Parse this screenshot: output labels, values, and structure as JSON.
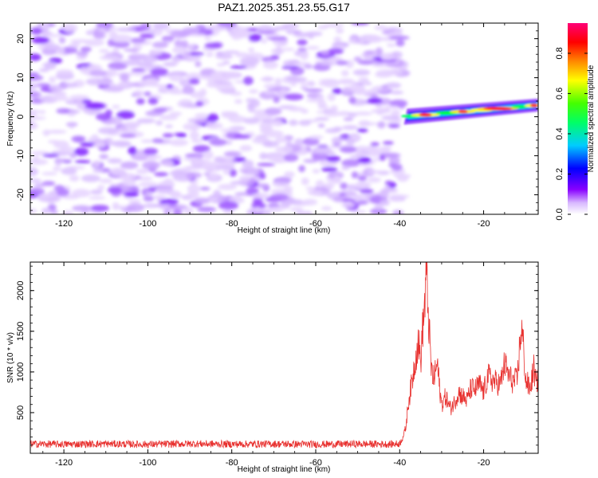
{
  "chart_data": [
    {
      "type": "heatmap",
      "title": "PAZ1.2025.351.23.55.G17",
      "xlabel": "Height of straight line (km)",
      "ylabel": "Frequency (Hz)",
      "xlim": [
        -128,
        -7
      ],
      "ylim": [
        -25,
        24
      ],
      "xticks": [
        -120,
        -100,
        -80,
        -60,
        -40,
        -20
      ],
      "yticks": [
        -20,
        -10,
        0,
        10,
        20
      ],
      "signal_band": {
        "x_start": -39,
        "x_end": -7,
        "freq_start": 0.0,
        "freq_end": 3.0
      },
      "colorbar": {
        "label": "Normalized spectral amplitude",
        "range": [
          0.0,
          0.95
        ],
        "ticks": [
          0.0,
          0.2,
          0.4,
          0.6,
          0.8
        ],
        "tick_labels": [
          "0.0",
          "0.2",
          "0.4",
          "0.6",
          "0.8"
        ],
        "colormap": [
          "#ffffff",
          "#8800ff",
          "#0000ff",
          "#00ffff",
          "#00ff00",
          "#ffff00",
          "#ff8800",
          "#ff0000",
          "#ff0088"
        ]
      }
    },
    {
      "type": "line",
      "xlabel": "Height of straight line (km)",
      "ylabel": "SNR (10 * v/v)",
      "xlim": [
        -128,
        -7
      ],
      "ylim": [
        0,
        2350
      ],
      "xticks": [
        -120,
        -100,
        -80,
        -60,
        -40,
        -20
      ],
      "yticks": [
        500,
        1000,
        1500,
        2000
      ],
      "color": "#e8312f",
      "series": [
        {
          "name": "SNR",
          "x": [
            -128,
            -120,
            -110,
            -100,
            -90,
            -80,
            -70,
            -60,
            -50,
            -42,
            -40,
            -39,
            -38.5,
            -38,
            -37,
            -36,
            -35.5,
            -35,
            -34.5,
            -34,
            -33.7,
            -33.4,
            -33,
            -32.5,
            -32,
            -31,
            -30.5,
            -30,
            -29,
            -28,
            -27,
            -26,
            -25,
            -24,
            -23,
            -22,
            -21,
            -20,
            -19,
            -18,
            -17,
            -16,
            -15,
            -14,
            -13,
            -12,
            -11.5,
            -11,
            -10.5,
            -10,
            -9.5,
            -9,
            -8,
            -7.5,
            -7
          ],
          "y": [
            115,
            112,
            116,
            110,
            118,
            112,
            115,
            110,
            115,
            112,
            118,
            230,
            330,
            600,
            900,
            1250,
            1380,
            1120,
            1550,
            1850,
            2300,
            1950,
            1550,
            1050,
            900,
            1100,
            800,
            600,
            700,
            550,
            620,
            750,
            700,
            650,
            800,
            780,
            850,
            750,
            950,
            900,
            870,
            850,
            1100,
            950,
            880,
            900,
            1250,
            1550,
            1300,
            900,
            850,
            780,
            1050,
            820,
            980
          ]
        }
      ]
    }
  ]
}
